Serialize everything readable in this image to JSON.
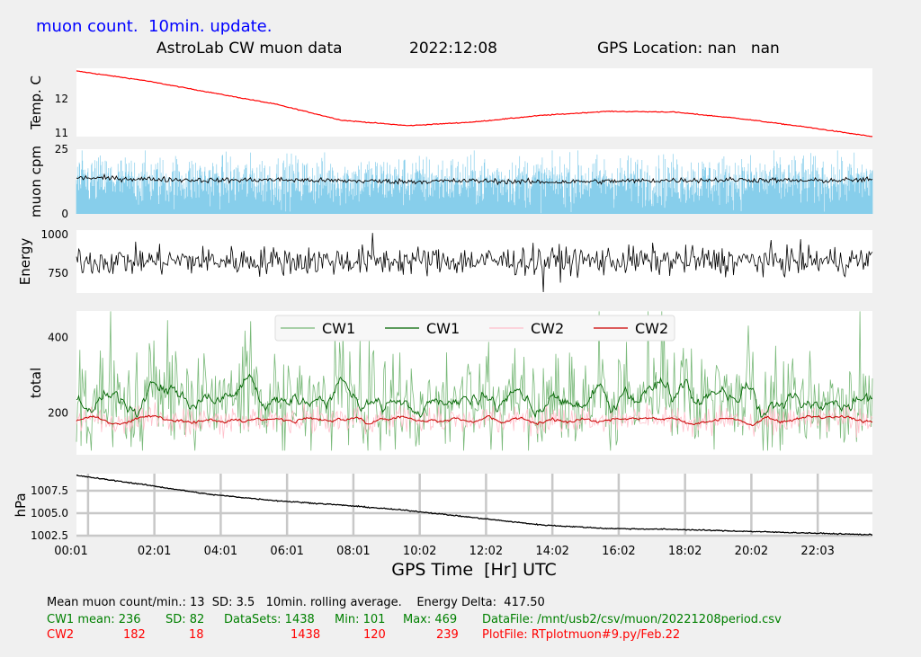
{
  "header": {
    "update_note": "muon count.  10min. update.",
    "title": "AstroLab CW muon data",
    "date": "2022:12:08",
    "location": "GPS Location: nan   nan"
  },
  "x_axis": {
    "label": "GPS Time  [Hr] UTC",
    "ticks": [
      "00:01",
      "02:01",
      "04:01",
      "06:01",
      "08:01",
      "10:02",
      "12:02",
      "14:02",
      "16:02",
      "18:02",
      "20:02",
      "22:03"
    ]
  },
  "chart_data": [
    {
      "type": "line",
      "ylabel": "Temp. C",
      "yticks": [
        "12",
        "11"
      ],
      "ylim": [
        10.9,
        12.9
      ],
      "series": [
        {
          "color": "#ff0000",
          "x": [
            0.0,
            2.0,
            4.0,
            6.0,
            8.0,
            10.0,
            12.0,
            14.0,
            16.0,
            18.0,
            20.0,
            22.0,
            24.0
          ],
          "y": [
            12.82,
            12.55,
            12.2,
            11.85,
            11.38,
            11.22,
            11.33,
            11.52,
            11.64,
            11.62,
            11.43,
            11.18,
            10.9
          ]
        }
      ]
    },
    {
      "type": "bar",
      "ylabel": "muon cpm",
      "yticks": [
        "25",
        "0"
      ],
      "ylim": [
        0,
        25
      ],
      "series": [
        {
          "color": "#87ceeb",
          "mean": 13,
          "sd": 3.5
        },
        {
          "color": "#000000",
          "x": [
            0,
            2,
            4,
            6,
            8,
            10,
            12,
            14,
            16,
            18,
            20,
            22,
            24
          ],
          "y": [
            14,
            13.5,
            13,
            13.2,
            12.8,
            12.5,
            12.8,
            12.3,
            12.6,
            13.0,
            13.2,
            12.8,
            13.2
          ]
        }
      ]
    },
    {
      "type": "line",
      "ylabel": "Energy",
      "yticks": [
        "1000",
        "750"
      ],
      "ylim": [
        620,
        1030
      ],
      "series": [
        {
          "color": "#000000",
          "mean": 830,
          "min": 626,
          "max": 1012
        }
      ]
    },
    {
      "type": "line",
      "ylabel": "total",
      "yticks": [
        "400",
        "200"
      ],
      "ylim": [
        90,
        470
      ],
      "legend_position": "top",
      "series": [
        {
          "name": "CW1",
          "color": "#79b979",
          "mean": 236,
          "sd": 82,
          "min": 101,
          "max": 469
        },
        {
          "name": "CW1",
          "color": "#006400",
          "mean": 236
        },
        {
          "name": "CW2",
          "color": "#ffc0cb",
          "mean": 182,
          "sd": 18,
          "min": 120,
          "max": 239
        },
        {
          "name": "CW2",
          "color": "#cc0000",
          "mean": 182
        }
      ]
    },
    {
      "type": "line",
      "ylabel": "hPa",
      "yticks": [
        "1007.5",
        "1005.0",
        "1002.5"
      ],
      "ylim": [
        1002.4,
        1009.4
      ],
      "series": [
        {
          "color": "#000000",
          "x": [
            0,
            2,
            4,
            6,
            8,
            10,
            12,
            14,
            16,
            18,
            20,
            22,
            24
          ],
          "y": [
            1009.2,
            1008.2,
            1007.1,
            1006.4,
            1005.9,
            1005.3,
            1004.5,
            1003.7,
            1003.3,
            1003.2,
            1003.0,
            1002.8,
            1002.6
          ]
        }
      ]
    }
  ],
  "footer": {
    "line1": "Mean muon count/min.: 13  SD: 3.5   10min. rolling average.    Energy Delta:  417.50",
    "cw1": {
      "label": "CW1 mean: 236",
      "sd": "SD: 82",
      "datasets": "DataSets: 1438",
      "min": "Min: 101",
      "max": "Max: 469",
      "file": "DataFile: /mnt/usb2/csv/muon/20221208period.csv"
    },
    "cw2": {
      "label": "CW2",
      "mean": "182",
      "sd": "18",
      "datasets": "1438",
      "min": "120",
      "max": "239",
      "file": "PlotFile: RTplotmuon#9.py/Feb.22"
    }
  }
}
